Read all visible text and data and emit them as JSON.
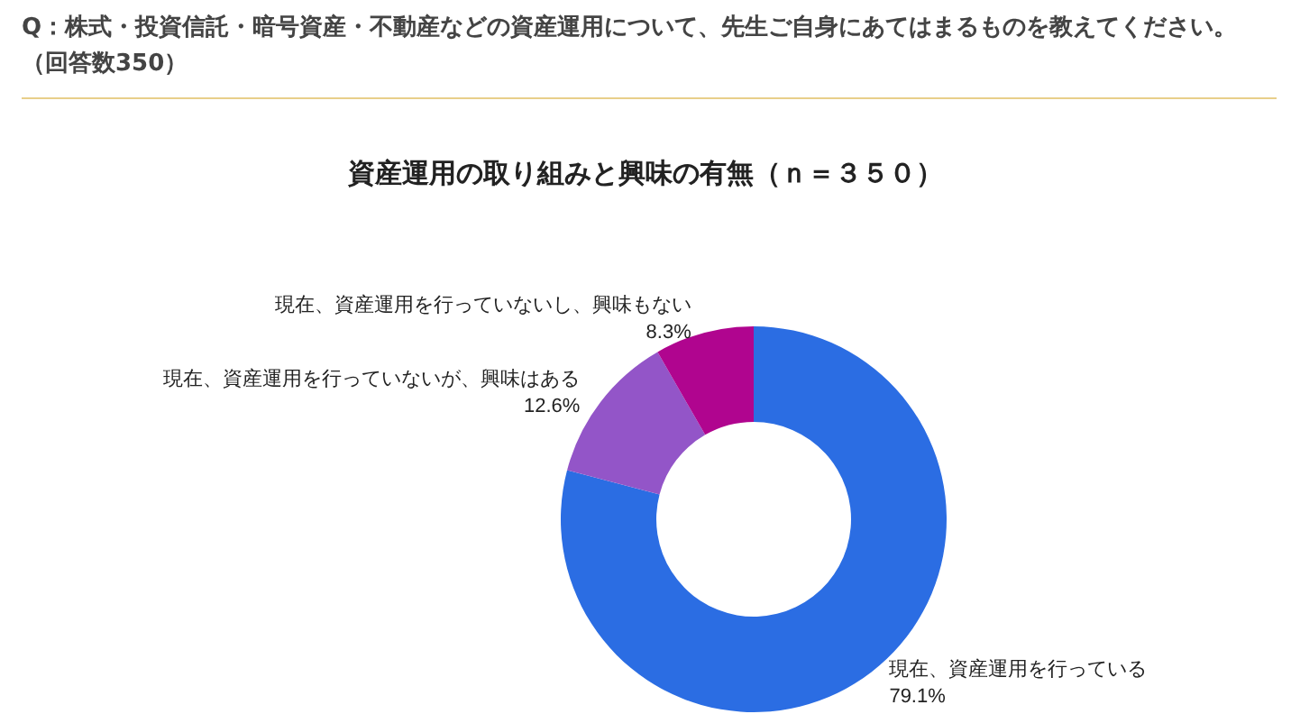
{
  "chart_data": {
    "type": "donut",
    "title": "資産運用の取り組みと興味の有無（ｎ＝３５０）",
    "annotations": [
      "Q：株式・投資信託・暗号資産・不動産などの資産運用について、先生ご自身にあてはまるものを教えてください。（回答数350）"
    ],
    "categories": [
      "現在、資産運用を行っている",
      "現在、資産運用を行っていないが、興味はある",
      "現在、資産運用を行っていないし、興味もない"
    ],
    "values": [
      79.1,
      12.6,
      8.3
    ],
    "colors": [
      "#2b6de3",
      "#9355c8",
      "#b0058f"
    ],
    "value_labels": [
      "79.1%",
      "12.6%",
      "8.3%"
    ]
  }
}
